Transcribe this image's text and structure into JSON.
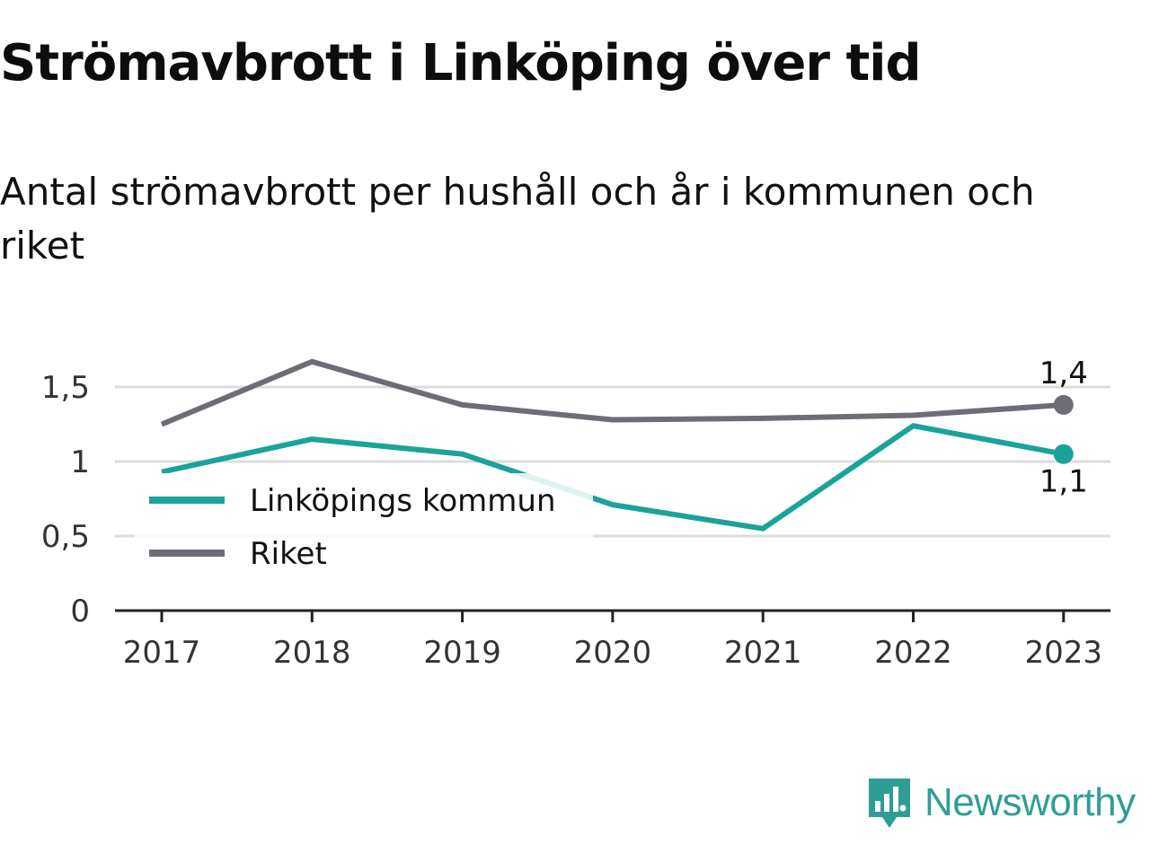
{
  "header": {
    "title": "Strömavbrott i Linköping över tid",
    "subtitle": "Antal strömavbrott per hushåll och år i kommunen och riket"
  },
  "branding": {
    "name": "Newsworthy"
  },
  "chart_data": {
    "type": "line",
    "title": "Strömavbrott i Linköping över tid",
    "subtitle": "Antal strömavbrott per hushåll och år i kommunen och riket",
    "categories": [
      "2017",
      "2018",
      "2019",
      "2020",
      "2021",
      "2022",
      "2023"
    ],
    "ylim": [
      0,
      1.8
    ],
    "yticks": [
      {
        "value": 0,
        "label": "0"
      },
      {
        "value": 0.5,
        "label": "0,5"
      },
      {
        "value": 1,
        "label": "1"
      },
      {
        "value": 1.5,
        "label": "1,5"
      }
    ],
    "grid": true,
    "legend": "inside-left",
    "series": [
      {
        "name": "Linköpings kommun",
        "color": "#1aa399",
        "values": [
          0.93,
          1.15,
          1.05,
          0.71,
          0.55,
          1.24,
          1.05
        ],
        "end_label": "1,1"
      },
      {
        "name": "Riket",
        "color": "#6e6d75",
        "values": [
          1.25,
          1.67,
          1.38,
          1.28,
          1.29,
          1.31,
          1.38
        ],
        "end_label": "1,4"
      }
    ]
  }
}
